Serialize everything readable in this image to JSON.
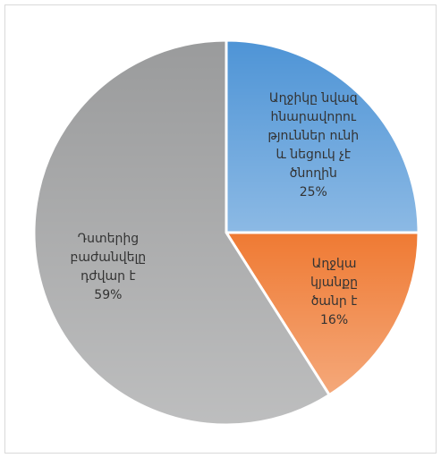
{
  "chart_data": {
    "type": "pie",
    "categories": [
      [
        "Աղջիկը նվազ",
        "հնարավորու",
        "թյուններ ունի",
        "և նեցուկ չէ",
        "ծնողին"
      ],
      [
        "Աղջկա",
        "կյանքը",
        "ծանր է"
      ],
      [
        "Դստերից",
        "բաժանվելը",
        "դժվար է"
      ]
    ],
    "values": [
      25,
      16,
      59
    ],
    "value_labels": [
      "25%",
      "16%",
      "59%"
    ],
    "colors": [
      "#4e94d6",
      "#ef7a33",
      "#9a9b9c"
    ]
  }
}
